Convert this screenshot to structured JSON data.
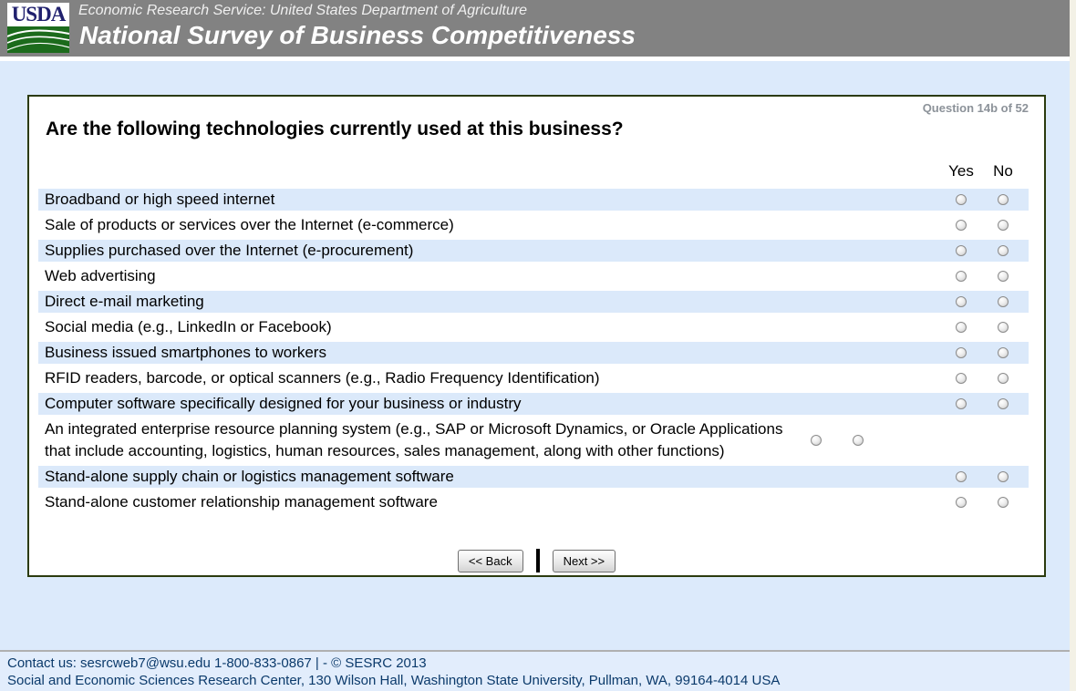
{
  "header": {
    "logo": "USDA",
    "agency_line": "Economic Research Service: United States Department of Agriculture",
    "survey_title": "National Survey of Business Competitiveness"
  },
  "question": {
    "progress": "Question 14b of 52",
    "title": "Are the following technologies currently used at this business?",
    "col_yes": "Yes",
    "col_no": "No",
    "rows": [
      {
        "label": "Broadband or high speed internet"
      },
      {
        "label": "Sale of products or services over the Internet (e-commerce)"
      },
      {
        "label": "Supplies purchased over the Internet (e-procurement)"
      },
      {
        "label": "Web advertising"
      },
      {
        "label": "Direct e-mail marketing"
      },
      {
        "label": "Social media (e.g., LinkedIn or Facebook)"
      },
      {
        "label": "Business issued smartphones to workers"
      },
      {
        "label": "RFID readers, barcode, or optical scanners (e.g., Radio Frequency Identification)"
      },
      {
        "label": "Computer software specifically designed for your business or industry"
      },
      {
        "label": "An integrated enterprise resource planning system (e.g., SAP or Microsoft Dynamics, or Oracle Applications that include accounting, logistics, human resources, sales management, along with other functions)"
      },
      {
        "label": "Stand-alone supply chain or logistics management software"
      },
      {
        "label": "Stand-alone customer relationship management software"
      }
    ]
  },
  "nav": {
    "back": "<< Back",
    "next": "Next >>"
  },
  "footer": {
    "line1": "Contact us: sesrcweb7@wsu.edu 1-800-833-0867 | - © SESRC 2013",
    "line2": "Social and Economic Sciences Research Center, 130 Wilson Hall, Washington State University, Pullman, WA, 99164-4014 USA"
  },
  "colors": {
    "header_bg": "#828282",
    "page_bg": "#dceafb",
    "row_alt_bg": "#dbe9fa",
    "panel_border": "#2b3b0e",
    "footer_text": "#0b3a6b",
    "logo_navy": "#21216e",
    "logo_green": "#1c6b1c"
  }
}
